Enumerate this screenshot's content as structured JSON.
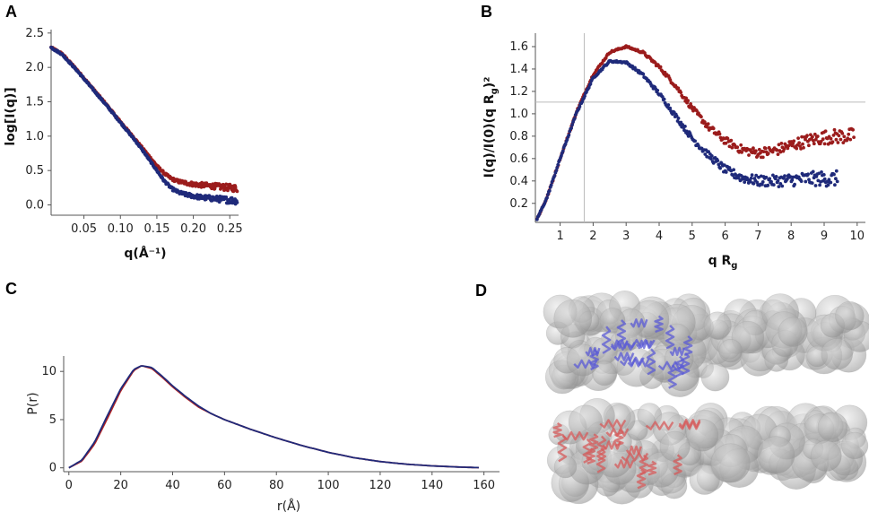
{
  "figure": {
    "panels": {
      "A": {
        "label": "A"
      },
      "B": {
        "label": "B"
      },
      "C": {
        "label": "C"
      },
      "D": {
        "label": "D"
      }
    }
  },
  "chart_data": [
    {
      "id": "A",
      "type": "scatter",
      "title": "",
      "xlabel": "q(Å⁻¹)",
      "ylabel": "log[I(q)]",
      "xlim": [
        0.005,
        0.262
      ],
      "ylim": [
        -0.15,
        2.55
      ],
      "xticks": [
        {
          "value": 0.05,
          "label": "0.05"
        },
        {
          "value": 0.1,
          "label": "0.10"
        },
        {
          "value": 0.15,
          "label": "0.15"
        },
        {
          "value": 0.2,
          "label": "0.20"
        },
        {
          "value": 0.25,
          "label": "0.25"
        }
      ],
      "yticks": [
        {
          "value": 0.0,
          "label": "0.0"
        },
        {
          "value": 0.5,
          "label": "0.5"
        },
        {
          "value": 1.0,
          "label": "1.0"
        },
        {
          "value": 1.5,
          "label": "1.5"
        },
        {
          "value": 2.0,
          "label": "2.0"
        },
        {
          "value": 2.5,
          "label": "2.5"
        }
      ],
      "series": [
        {
          "name": "red",
          "color": "#9b1c1c",
          "points": [
            [
              0.005,
              2.29
            ],
            [
              0.02,
              2.2
            ],
            [
              0.04,
              1.97
            ],
            [
              0.06,
              1.72
            ],
            [
              0.08,
              1.47
            ],
            [
              0.1,
              1.21
            ],
            [
              0.12,
              0.96
            ],
            [
              0.14,
              0.7
            ],
            [
              0.15,
              0.57
            ],
            [
              0.16,
              0.46
            ],
            [
              0.17,
              0.38
            ],
            [
              0.18,
              0.34
            ],
            [
              0.19,
              0.32
            ],
            [
              0.2,
              0.3
            ],
            [
              0.21,
              0.29
            ],
            [
              0.22,
              0.28
            ],
            [
              0.23,
              0.27
            ],
            [
              0.24,
              0.26
            ],
            [
              0.25,
              0.25
            ],
            [
              0.26,
              0.24
            ]
          ]
        },
        {
          "name": "blue",
          "color": "#1f2a7a",
          "points": [
            [
              0.005,
              2.29
            ],
            [
              0.02,
              2.19
            ],
            [
              0.04,
              1.96
            ],
            [
              0.06,
              1.71
            ],
            [
              0.08,
              1.46
            ],
            [
              0.1,
              1.2
            ],
            [
              0.12,
              0.94
            ],
            [
              0.13,
              0.8
            ],
            [
              0.14,
              0.65
            ],
            [
              0.15,
              0.5
            ],
            [
              0.16,
              0.35
            ],
            [
              0.17,
              0.24
            ],
            [
              0.18,
              0.18
            ],
            [
              0.19,
              0.15
            ],
            [
              0.2,
              0.13
            ],
            [
              0.21,
              0.11
            ],
            [
              0.22,
              0.1
            ],
            [
              0.23,
              0.09
            ],
            [
              0.24,
              0.08
            ],
            [
              0.25,
              0.07
            ],
            [
              0.26,
              0.06
            ]
          ]
        }
      ]
    },
    {
      "id": "B",
      "type": "scatter",
      "title": "",
      "xlabel": "q R",
      "xlabel_sub": "g",
      "ylabel": "I(q)/I(0)(q R",
      "ylabel_sub": "g",
      "ylabel_tail": ")²",
      "xlim": [
        0.25,
        10.25
      ],
      "ylim": [
        0.03,
        1.72
      ],
      "xticks": [
        {
          "value": 1,
          "label": "1"
        },
        {
          "value": 2,
          "label": "2"
        },
        {
          "value": 3,
          "label": "3"
        },
        {
          "value": 4,
          "label": "4"
        },
        {
          "value": 5,
          "label": "5"
        },
        {
          "value": 6,
          "label": "6"
        },
        {
          "value": 7,
          "label": "7"
        },
        {
          "value": 8,
          "label": "8"
        },
        {
          "value": 9,
          "label": "9"
        },
        {
          "value": 10,
          "label": "10"
        }
      ],
      "yticks": [
        {
          "value": 0.2,
          "label": "0.2"
        },
        {
          "value": 0.4,
          "label": "0.4"
        },
        {
          "value": 0.6,
          "label": "0.6"
        },
        {
          "value": 0.8,
          "label": "0.8"
        },
        {
          "value": 1.0,
          "label": "1.0"
        },
        {
          "value": 1.2,
          "label": "1.2"
        },
        {
          "value": 1.4,
          "label": "1.4"
        },
        {
          "value": 1.6,
          "label": "1.6"
        }
      ],
      "reference_lines": {
        "vertical_x": 1.73,
        "horizontal_y": 1.104
      },
      "series": [
        {
          "name": "red",
          "color": "#9b1c1c",
          "points": [
            [
              0.3,
              0.06
            ],
            [
              0.6,
              0.25
            ],
            [
              1.0,
              0.6
            ],
            [
              1.5,
              1.02
            ],
            [
              2.0,
              1.35
            ],
            [
              2.5,
              1.55
            ],
            [
              3.0,
              1.6
            ],
            [
              3.5,
              1.55
            ],
            [
              4.0,
              1.42
            ],
            [
              4.5,
              1.25
            ],
            [
              5.0,
              1.05
            ],
            [
              5.5,
              0.88
            ],
            [
              6.0,
              0.76
            ],
            [
              6.5,
              0.68
            ],
            [
              7.0,
              0.65
            ],
            [
              7.5,
              0.67
            ],
            [
              8.0,
              0.72
            ],
            [
              8.5,
              0.76
            ],
            [
              9.0,
              0.79
            ],
            [
              9.5,
              0.8
            ],
            [
              9.9,
              0.8
            ]
          ]
        },
        {
          "name": "blue",
          "color": "#1f2a7a",
          "points": [
            [
              0.3,
              0.06
            ],
            [
              0.6,
              0.25
            ],
            [
              1.0,
              0.6
            ],
            [
              1.5,
              1.01
            ],
            [
              2.0,
              1.32
            ],
            [
              2.5,
              1.47
            ],
            [
              3.0,
              1.46
            ],
            [
              3.5,
              1.35
            ],
            [
              4.0,
              1.18
            ],
            [
              4.5,
              0.98
            ],
            [
              5.0,
              0.78
            ],
            [
              5.5,
              0.63
            ],
            [
              6.0,
              0.5
            ],
            [
              6.5,
              0.43
            ],
            [
              7.0,
              0.4
            ],
            [
              7.5,
              0.4
            ],
            [
              8.0,
              0.41
            ],
            [
              8.5,
              0.42
            ],
            [
              9.0,
              0.42
            ],
            [
              9.4,
              0.42
            ]
          ]
        }
      ]
    },
    {
      "id": "C",
      "type": "line",
      "title": "",
      "xlabel": "r(Å)",
      "ylabel": "P(r)",
      "xlim": [
        -2,
        166
      ],
      "ylim": [
        -0.4,
        11.6
      ],
      "xticks": [
        {
          "value": 0,
          "label": "0"
        },
        {
          "value": 20,
          "label": "20"
        },
        {
          "value": 40,
          "label": "40"
        },
        {
          "value": 60,
          "label": "60"
        },
        {
          "value": 80,
          "label": "80"
        },
        {
          "value": 100,
          "label": "100"
        },
        {
          "value": 120,
          "label": "120"
        },
        {
          "value": 140,
          "label": "140"
        },
        {
          "value": 160,
          "label": "160"
        }
      ],
      "yticks": [
        {
          "value": 0,
          "label": "0"
        },
        {
          "value": 5,
          "label": "5"
        },
        {
          "value": 10,
          "label": "10"
        }
      ],
      "series": [
        {
          "name": "red",
          "color": "#b22222",
          "points": [
            [
              0,
              0
            ],
            [
              5,
              0.7
            ],
            [
              10,
              2.5
            ],
            [
              15,
              5.2
            ],
            [
              20,
              8.0
            ],
            [
              25,
              10.1
            ],
            [
              28,
              10.6
            ],
            [
              32,
              10.3
            ],
            [
              36,
              9.4
            ],
            [
              40,
              8.4
            ],
            [
              45,
              7.3
            ],
            [
              50,
              6.3
            ],
            [
              55,
              5.6
            ],
            [
              60,
              5.0
            ],
            [
              65,
              4.5
            ],
            [
              70,
              4.0
            ],
            [
              80,
              3.1
            ],
            [
              90,
              2.3
            ],
            [
              100,
              1.6
            ],
            [
              110,
              1.05
            ],
            [
              120,
              0.65
            ],
            [
              130,
              0.38
            ],
            [
              140,
              0.2
            ],
            [
              150,
              0.08
            ],
            [
              158,
              0.02
            ]
          ]
        },
        {
          "name": "blue",
          "color": "#1f2a7a",
          "points": [
            [
              0,
              0
            ],
            [
              5,
              0.8
            ],
            [
              10,
              2.7
            ],
            [
              15,
              5.5
            ],
            [
              20,
              8.2
            ],
            [
              25,
              10.2
            ],
            [
              28,
              10.6
            ],
            [
              32,
              10.4
            ],
            [
              36,
              9.5
            ],
            [
              40,
              8.5
            ],
            [
              45,
              7.4
            ],
            [
              50,
              6.4
            ],
            [
              55,
              5.6
            ],
            [
              60,
              5.0
            ],
            [
              65,
              4.5
            ],
            [
              70,
              4.0
            ],
            [
              80,
              3.1
            ],
            [
              90,
              2.3
            ],
            [
              100,
              1.6
            ],
            [
              110,
              1.05
            ],
            [
              120,
              0.65
            ],
            [
              130,
              0.38
            ],
            [
              140,
              0.2
            ],
            [
              150,
              0.08
            ],
            [
              158,
              0.02
            ]
          ]
        }
      ]
    },
    {
      "id": "D",
      "type": "image",
      "title": "",
      "models": [
        {
          "name": "blue-model",
          "envelope_color": "#a8a8a8",
          "ribbon_color": "#5b5bd6"
        },
        {
          "name": "red-model",
          "envelope_color": "#a8a8a8",
          "ribbon_color": "#d65b5b"
        }
      ]
    }
  ]
}
